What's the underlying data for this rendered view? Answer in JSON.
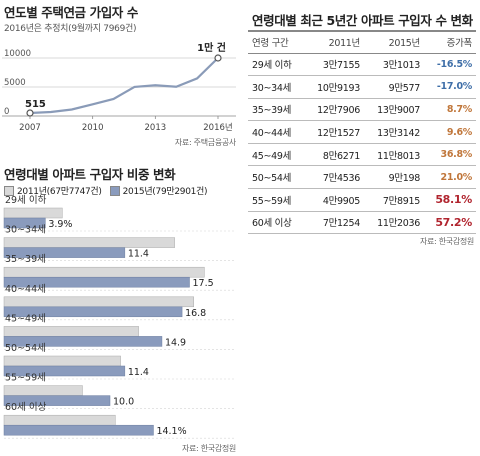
{
  "panel1": {
    "title": "연도별 주택연금 가입자 수",
    "subtitle": "2016년은 추정치(9월까지 7969건)",
    "source": "자료: 주택금융공사",
    "first_label": "515",
    "last_label": "1만 건"
  },
  "panel2": {
    "title": "연령대별 아파트 구입자 비중 변화",
    "legend": [
      "2011년(67만7747건)",
      "2015년(79만2901건)"
    ],
    "source": "자료: 한국감정원"
  },
  "panel3": {
    "title": "연령대별 최근 5년간 아파트 구입자 수 변화",
    "headers": [
      "연령 구간",
      "2011년",
      "2015년",
      "증가폭"
    ],
    "rows": [
      [
        "29세 이하",
        "3만7155",
        "3만1013",
        "-16.5%"
      ],
      [
        "30~34세",
        "10만9193",
        "9만577",
        "-17.0%"
      ],
      [
        "35~39세",
        "12만7906",
        "13만9007",
        "8.7%"
      ],
      [
        "40~44세",
        "12만1527",
        "13만3142",
        "9.6%"
      ],
      [
        "45~49세",
        "8만6271",
        "11만8013",
        "36.8%"
      ],
      [
        "50~54세",
        "7만4536",
        "9만198",
        "21.0%"
      ],
      [
        "55~59세",
        "4만9905",
        "7만8915",
        "58.1%"
      ],
      [
        "60세 이상",
        "7만1254",
        "11만2036",
        "57.2%"
      ]
    ],
    "source": "자료: 한국감정원"
  },
  "colors": {
    "line": "#8a9bb8",
    "bar_2011": "#d9d9d9",
    "bar_2015": "#8a9bbd",
    "neg": "#3f6fa8",
    "pos_low": "#c0763a",
    "pos_high": "#b1252f"
  },
  "chart_data": [
    {
      "type": "line",
      "title": "연도별 주택연금 가입자 수",
      "x": [
        2007,
        2008,
        2009,
        2010,
        2011,
        2012,
        2013,
        2014,
        2015,
        2016
      ],
      "xticks": [
        "2007",
        "2010",
        "2013",
        "2016년"
      ],
      "values": [
        515,
        695,
        1124,
        2016,
        2936,
        5013,
        5296,
        5039,
        6486,
        10000
      ],
      "yticks": [
        "0",
        "5000",
        "10000"
      ],
      "ylim": [
        0,
        10000
      ],
      "grid": true
    },
    {
      "type": "bar",
      "orientation": "horizontal",
      "title": "연령대별 아파트 구입자 비중 변화",
      "categories": [
        "29세 이하",
        "30~34세",
        "35~39세",
        "40~44세",
        "45~49세",
        "50~54세",
        "55~59세",
        "60세 이상"
      ],
      "series": [
        {
          "name": "2011년(67만7747건)",
          "values": [
            5.5,
            16.1,
            18.9,
            17.9,
            12.7,
            11.0,
            7.4,
            10.5
          ]
        },
        {
          "name": "2015년(79만2901건)",
          "values": [
            3.9,
            11.4,
            17.5,
            16.8,
            14.9,
            11.4,
            10.0,
            14.1
          ]
        }
      ],
      "value_labels": [
        "3.9%",
        "11.4",
        "17.5",
        "16.8",
        "14.9",
        "11.4",
        "10.0",
        "14.1%"
      ],
      "legend": "top"
    },
    {
      "type": "table",
      "title": "연령대별 최근 5년간 아파트 구입자 수 변화",
      "columns": [
        "연령 구간",
        "2011년",
        "2015년",
        "증가폭"
      ],
      "rows": [
        [
          "29세 이하",
          "3만7155",
          "3만1013",
          "-16.5%"
        ],
        [
          "30~34세",
          "10만9193",
          "9만577",
          "-17.0%"
        ],
        [
          "35~39세",
          "12만7906",
          "13만9007",
          "8.7%"
        ],
        [
          "40~44세",
          "12만1527",
          "13만3142",
          "9.6%"
        ],
        [
          "45~49세",
          "8만6271",
          "11만8013",
          "36.8%"
        ],
        [
          "50~54세",
          "7만4536",
          "9만198",
          "21.0%"
        ],
        [
          "55~59세",
          "4만9905",
          "7만8915",
          "58.1%"
        ],
        [
          "60세 이상",
          "7만1254",
          "11만2036",
          "57.2%"
        ]
      ]
    }
  ]
}
